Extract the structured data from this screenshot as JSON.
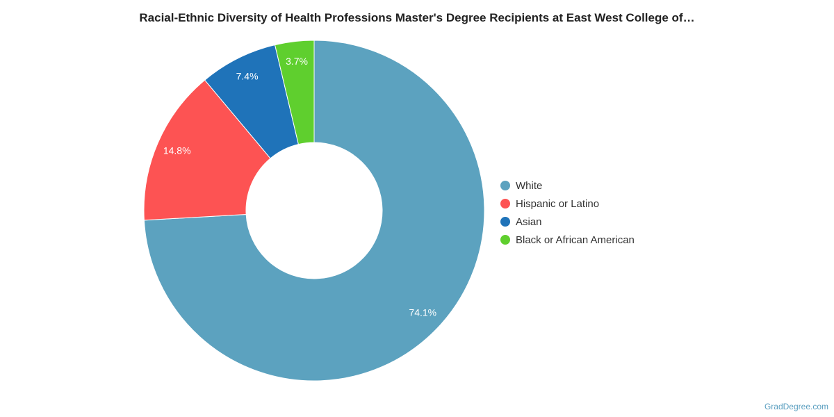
{
  "chart_data": {
    "type": "pie",
    "variant": "donut",
    "title": "Racial-Ethnic Diversity of Health Professions Master's Degree Recipients at East West College of…",
    "slices": [
      {
        "label": "White",
        "value": 74.1,
        "value_label": "74.1%",
        "color": "#5ca2bf"
      },
      {
        "label": "Hispanic or Latino",
        "value": 14.8,
        "value_label": "14.8%",
        "color": "#fd5353"
      },
      {
        "label": "Asian",
        "value": 7.4,
        "value_label": "7.4%",
        "color": "#1f73b9"
      },
      {
        "label": "Black or African American",
        "value": 3.7,
        "value_label": "3.7%",
        "color": "#5fcf2e"
      }
    ],
    "legend_position": "right"
  },
  "watermark": "GradDegree.com"
}
